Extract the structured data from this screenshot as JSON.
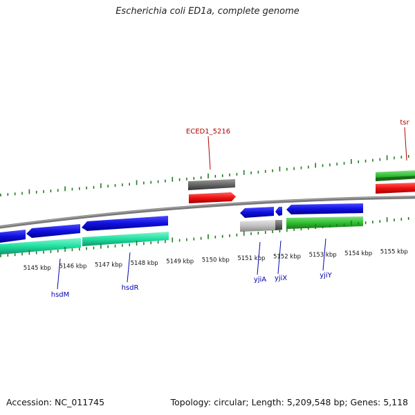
{
  "title": "Escherichia coli ED1a, complete genome",
  "footer": {
    "accession": "Accession: NC_011745",
    "summary": "Topology: circular; Length: 5,209,548 bp; Genes: 5,118"
  },
  "colors": {
    "backbone": "#8a8a8a",
    "tick": "#1f7a1f",
    "cds_blue": "#1010e0",
    "cds_teal": "#20e0a0",
    "cds_green": "#30c030",
    "cds_red": "#ee1010",
    "cds_gray": "#666666",
    "cds_lightgray": "#c0c0c0",
    "label_red": "#b00000",
    "label_blue": "#0000b0"
  },
  "kbp_labels": [
    {
      "text": "5145 kbp",
      "kbp": 5145
    },
    {
      "text": "5146 kbp",
      "kbp": 5146
    },
    {
      "text": "5147 kbp",
      "kbp": 5147
    },
    {
      "text": "5148 kbp",
      "kbp": 5148
    },
    {
      "text": "5149 kbp",
      "kbp": 5149
    },
    {
      "text": "5150 kbp",
      "kbp": 5150
    },
    {
      "text": "5151 kbp",
      "kbp": 5151
    },
    {
      "text": "5152 kbp",
      "kbp": 5152
    },
    {
      "text": "5153 kbp",
      "kbp": 5153
    },
    {
      "text": "5154 kbp",
      "kbp": 5154
    },
    {
      "text": "5155 kbp",
      "kbp": 5155
    }
  ],
  "gene_labels": [
    {
      "text": "ECED1_5216",
      "strand": "forward",
      "kbp": 5150.1
    },
    {
      "text": "tsr",
      "strand": "forward",
      "kbp": 5155.9
    },
    {
      "text": "hsdM",
      "strand": "reverse",
      "kbp": 5145.8
    },
    {
      "text": "hsdR",
      "strand": "reverse",
      "kbp": 5147.9
    },
    {
      "text": "yjiA",
      "strand": "reverse",
      "kbp": 5151.6
    },
    {
      "text": "yjiX",
      "strand": "reverse",
      "kbp": 5152.2
    },
    {
      "text": "yjiY",
      "strand": "reverse",
      "kbp": 5153.4
    }
  ]
}
